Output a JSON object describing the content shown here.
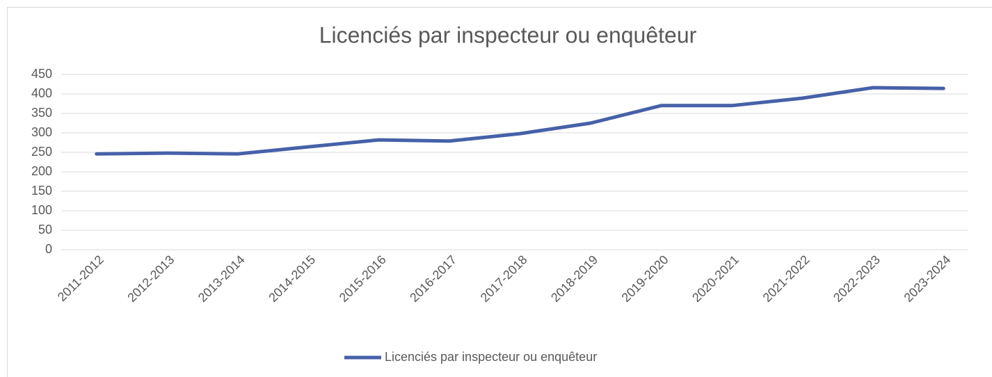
{
  "chart_data": {
    "type": "line",
    "title": "Licenciés par inspecteur ou enquêteur",
    "categories": [
      "2011-2012",
      "2012-2013",
      "2013-2014",
      "2014-2015",
      "2015-2016",
      "2016-2017",
      "2017-2018",
      "2018-2019",
      "2019-2020",
      "2020-2021",
      "2021-2022",
      "2022-2023",
      "2023-2024"
    ],
    "series": [
      {
        "name": "Licenciés par inspecteur ou enquêteur",
        "color": "#4661a8",
        "values": [
          246,
          248,
          246,
          264,
          282,
          279,
          298,
          325,
          370,
          370,
          389,
          416,
          414
        ]
      }
    ],
    "ylim": [
      0,
      450
    ],
    "yticks": [
      0,
      50,
      100,
      150,
      200,
      250,
      300,
      350,
      400,
      450
    ],
    "grid": true,
    "legend": "bottom"
  }
}
